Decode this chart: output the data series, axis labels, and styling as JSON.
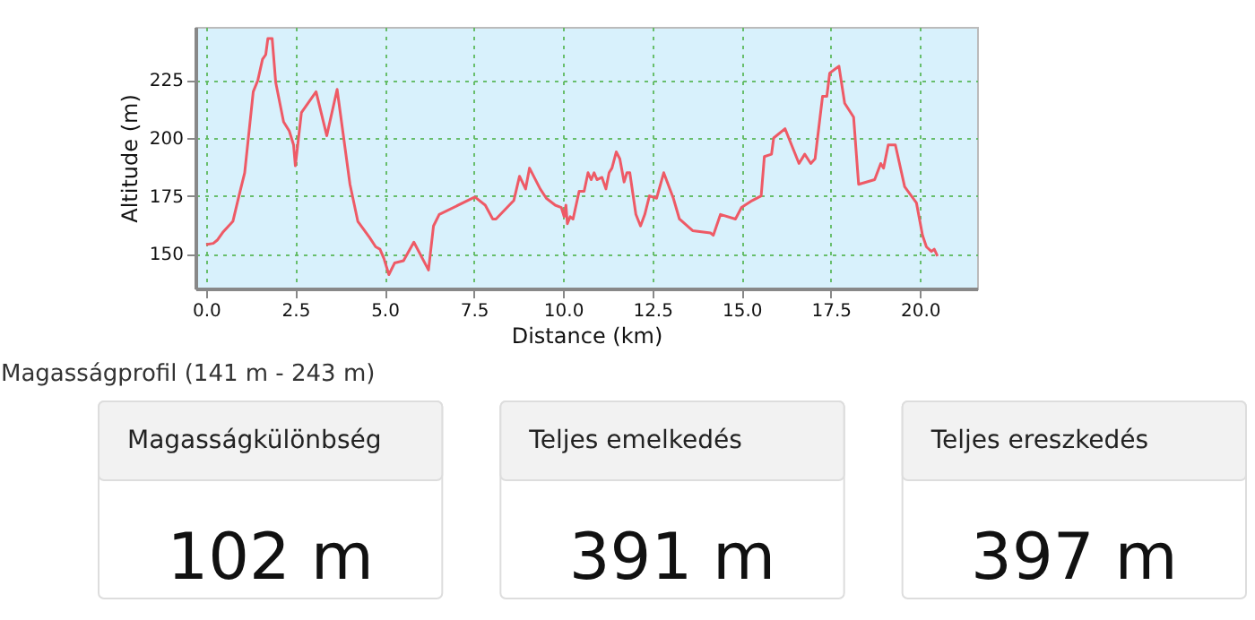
{
  "chart_data": [
    {
      "type": "line",
      "xlabel": "Distance (km)",
      "ylabel": "Altitude (m)",
      "color": "#ee5a66",
      "grid": true,
      "line_style": "solid",
      "xlim": [
        -0.3,
        21.6
      ],
      "ylim": [
        135,
        248
      ],
      "xticks": [
        {
          "value": 0,
          "label": "0.0"
        },
        {
          "value": 2.5,
          "label": "2.5"
        },
        {
          "value": 5,
          "label": "5.0"
        },
        {
          "value": 7.5,
          "label": "7.5"
        },
        {
          "value": 10,
          "label": "10.0"
        },
        {
          "value": 12.5,
          "label": "12.5"
        },
        {
          "value": 15,
          "label": "15.0"
        },
        {
          "value": 17.5,
          "label": "17.5"
        },
        {
          "value": 20,
          "label": "20.0"
        }
      ],
      "yticks": [
        150,
        175,
        200,
        225
      ],
      "x": [
        0,
        0.2,
        0.32,
        0.48,
        0.75,
        0.92,
        1.08,
        1.32,
        1.45,
        1.58,
        1.67,
        1.73,
        1.85,
        1.95,
        2.17,
        2.33,
        2.45,
        2.5,
        2.67,
        3.08,
        3.38,
        3.67,
        4.03,
        4.25,
        4.58,
        4.75,
        4.87,
        4.98,
        5.12,
        5.28,
        5.53,
        5.82,
        6.23,
        6.37,
        6.53,
        7.53,
        7.82,
        8.03,
        8.12,
        8.62,
        8.78,
        8.95,
        9.06,
        9.36,
        9.53,
        9.78,
        9.95,
        10.03,
        10.08,
        10.12,
        10.2,
        10.28,
        10.45,
        10.59,
        10.7,
        10.79,
        10.87,
        10.95,
        11.09,
        11.2,
        11.29,
        11.37,
        11.49,
        11.59,
        11.71,
        11.79,
        11.87,
        12.04,
        12.17,
        12.29,
        12.42,
        12.62,
        12.82,
        13.09,
        13.26,
        13.63,
        14.13,
        14.21,
        14.41,
        14.83,
        15.0,
        15.3,
        15.55,
        15.64,
        15.84,
        15.9,
        16.22,
        16.61,
        16.77,
        16.94,
        17.06,
        17.27,
        17.39,
        17.47,
        17.64,
        17.73,
        17.89,
        18.14,
        18.28,
        18.73,
        18.9,
        18.98,
        19.11,
        19.31,
        19.57,
        19.9,
        20.07,
        20.18,
        20.32,
        20.4,
        20.49
      ],
      "values": [
        154,
        154.5,
        156,
        159.5,
        164,
        175,
        185,
        220,
        225,
        234,
        236,
        243,
        243,
        224,
        207,
        203,
        197,
        188,
        211,
        220,
        201,
        221,
        180,
        164,
        157,
        153,
        152,
        148,
        141,
        146,
        147,
        155,
        143,
        162,
        167,
        174.5,
        171,
        165,
        165,
        173,
        183.5,
        178,
        187,
        178,
        174,
        171,
        170,
        166,
        171,
        163,
        166,
        165,
        177,
        177,
        185,
        182,
        185,
        182,
        183,
        178,
        185,
        187,
        194,
        191,
        181,
        185,
        185,
        167,
        162,
        167,
        175,
        174,
        185,
        174,
        165,
        160,
        159,
        158,
        167,
        165,
        170,
        173,
        175,
        192,
        193,
        200,
        204,
        189,
        193,
        189,
        191,
        218,
        218,
        228,
        230,
        231,
        215,
        209,
        180,
        182,
        189,
        187,
        197,
        197,
        179,
        172,
        158,
        153,
        151,
        152,
        149
      ]
    },
    {
      "type": "other",
      "title": "Magasságprofil (141 m - 243 m)",
      "categories": [
        "Magasságkülönbség",
        "Teljes emelkedés",
        "Teljes ereszkedés"
      ],
      "values": [
        102,
        391,
        397
      ],
      "value_labels": [
        "102 m",
        "391 m",
        "397 m"
      ]
    }
  ]
}
